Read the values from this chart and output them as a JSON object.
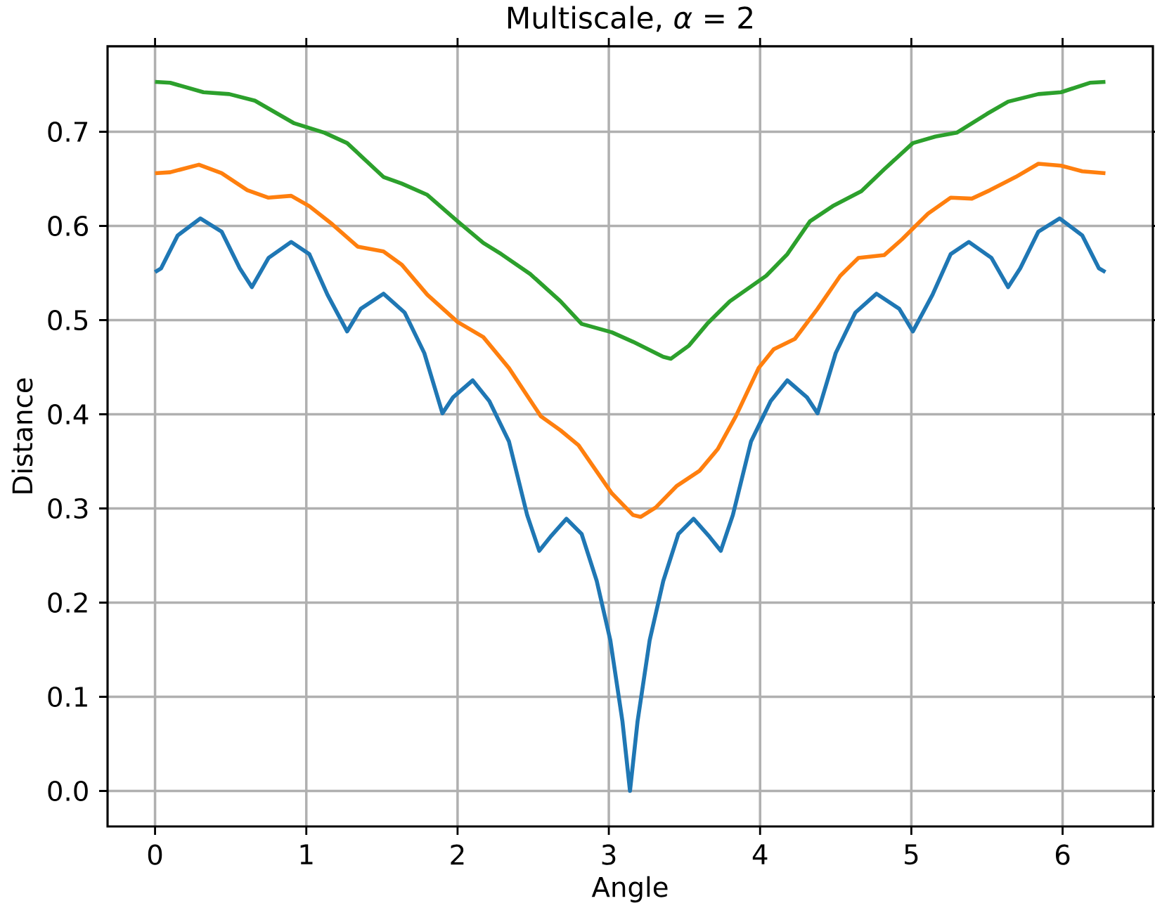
{
  "chart_data": {
    "type": "line",
    "title": "Multiscale, *α* = 2",
    "xlabel": "Angle",
    "ylabel": "Distance",
    "xlim": [
      -0.314,
      6.597
    ],
    "ylim": [
      -0.0377,
      0.7907
    ],
    "xticks": [
      0,
      1,
      2,
      3,
      4,
      5,
      6
    ],
    "yticks": [
      {
        "value": 0,
        "label": "0.0"
      },
      0.1,
      0.2,
      0.3,
      0.4,
      0.5,
      0.6,
      0.7
    ],
    "grid": true,
    "marker": "none",
    "line_style": "solid",
    "series": [
      {
        "color": "#1f77b4",
        "x": [
          0,
          0.04,
          0.15,
          0.3,
          0.44,
          0.56,
          0.64,
          0.75,
          0.9,
          1.02,
          1.14,
          1.27,
          1.36,
          1.51,
          1.65,
          1.78,
          1.9,
          1.97,
          2.1,
          2.21,
          2.34,
          2.46,
          2.54,
          2.62,
          2.72,
          2.82,
          2.92,
          3.01,
          3.09,
          3.14,
          3.19,
          3.27,
          3.36,
          3.46,
          3.56,
          3.66,
          3.74,
          3.82,
          3.94,
          4.07,
          4.18,
          4.31,
          4.38,
          4.5,
          4.63,
          4.77,
          4.92,
          5.01,
          5.14,
          5.26,
          5.38,
          5.53,
          5.64,
          5.72,
          5.84,
          5.98,
          6.13,
          6.24,
          6.283
        ],
        "values": [
          0.551,
          0.555,
          0.59,
          0.608,
          0.594,
          0.555,
          0.535,
          0.566,
          0.583,
          0.57,
          0.527,
          0.488,
          0.512,
          0.528,
          0.508,
          0.465,
          0.401,
          0.418,
          0.436,
          0.414,
          0.371,
          0.293,
          0.255,
          0.271,
          0.289,
          0.273,
          0.223,
          0.16,
          0.074,
          0.0,
          0.074,
          0.16,
          0.223,
          0.273,
          0.289,
          0.271,
          0.255,
          0.293,
          0.371,
          0.414,
          0.436,
          0.418,
          0.401,
          0.465,
          0.508,
          0.528,
          0.512,
          0.488,
          0.527,
          0.57,
          0.583,
          0.566,
          0.535,
          0.555,
          0.594,
          0.608,
          0.59,
          0.555,
          0.551
        ]
      },
      {
        "color": "#ff7f0e",
        "x": [
          0,
          0.1,
          0.29,
          0.44,
          0.61,
          0.75,
          0.9,
          1.02,
          1.17,
          1.34,
          1.51,
          1.63,
          1.8,
          2.0,
          2.17,
          2.34,
          2.55,
          2.68,
          2.8,
          3.02,
          3.16,
          3.21,
          3.31,
          3.45,
          3.6,
          3.72,
          3.84,
          3.99,
          4.09,
          4.23,
          4.38,
          4.53,
          4.65,
          4.82,
          4.94,
          5.11,
          5.26,
          5.4,
          5.52,
          5.69,
          5.84,
          5.99,
          6.13,
          6.283
        ],
        "values": [
          0.656,
          0.657,
          0.665,
          0.656,
          0.638,
          0.63,
          0.632,
          0.621,
          0.602,
          0.578,
          0.573,
          0.559,
          0.527,
          0.498,
          0.482,
          0.449,
          0.398,
          0.383,
          0.367,
          0.316,
          0.293,
          0.291,
          0.301,
          0.324,
          0.34,
          0.363,
          0.398,
          0.449,
          0.469,
          0.48,
          0.512,
          0.547,
          0.566,
          0.569,
          0.586,
          0.613,
          0.63,
          0.629,
          0.638,
          0.652,
          0.666,
          0.664,
          0.658,
          0.656
        ]
      },
      {
        "color": "#2ca02c",
        "x": [
          0,
          0.1,
          0.32,
          0.49,
          0.66,
          0.92,
          1.12,
          1.27,
          1.51,
          1.63,
          1.8,
          2.0,
          2.17,
          2.29,
          2.48,
          2.68,
          2.82,
          3.02,
          3.16,
          3.36,
          3.41,
          3.53,
          3.65,
          3.8,
          4.04,
          4.18,
          4.33,
          4.48,
          4.67,
          4.82,
          5.01,
          5.16,
          5.3,
          5.5,
          5.64,
          5.84,
          5.99,
          6.18,
          6.283
        ],
        "values": [
          0.753,
          0.752,
          0.742,
          0.74,
          0.733,
          0.709,
          0.699,
          0.688,
          0.652,
          0.645,
          0.633,
          0.605,
          0.582,
          0.57,
          0.549,
          0.52,
          0.496,
          0.487,
          0.477,
          0.461,
          0.459,
          0.473,
          0.496,
          0.52,
          0.547,
          0.57,
          0.605,
          0.621,
          0.637,
          0.66,
          0.688,
          0.695,
          0.699,
          0.719,
          0.732,
          0.74,
          0.742,
          0.752,
          0.753
        ]
      }
    ]
  }
}
